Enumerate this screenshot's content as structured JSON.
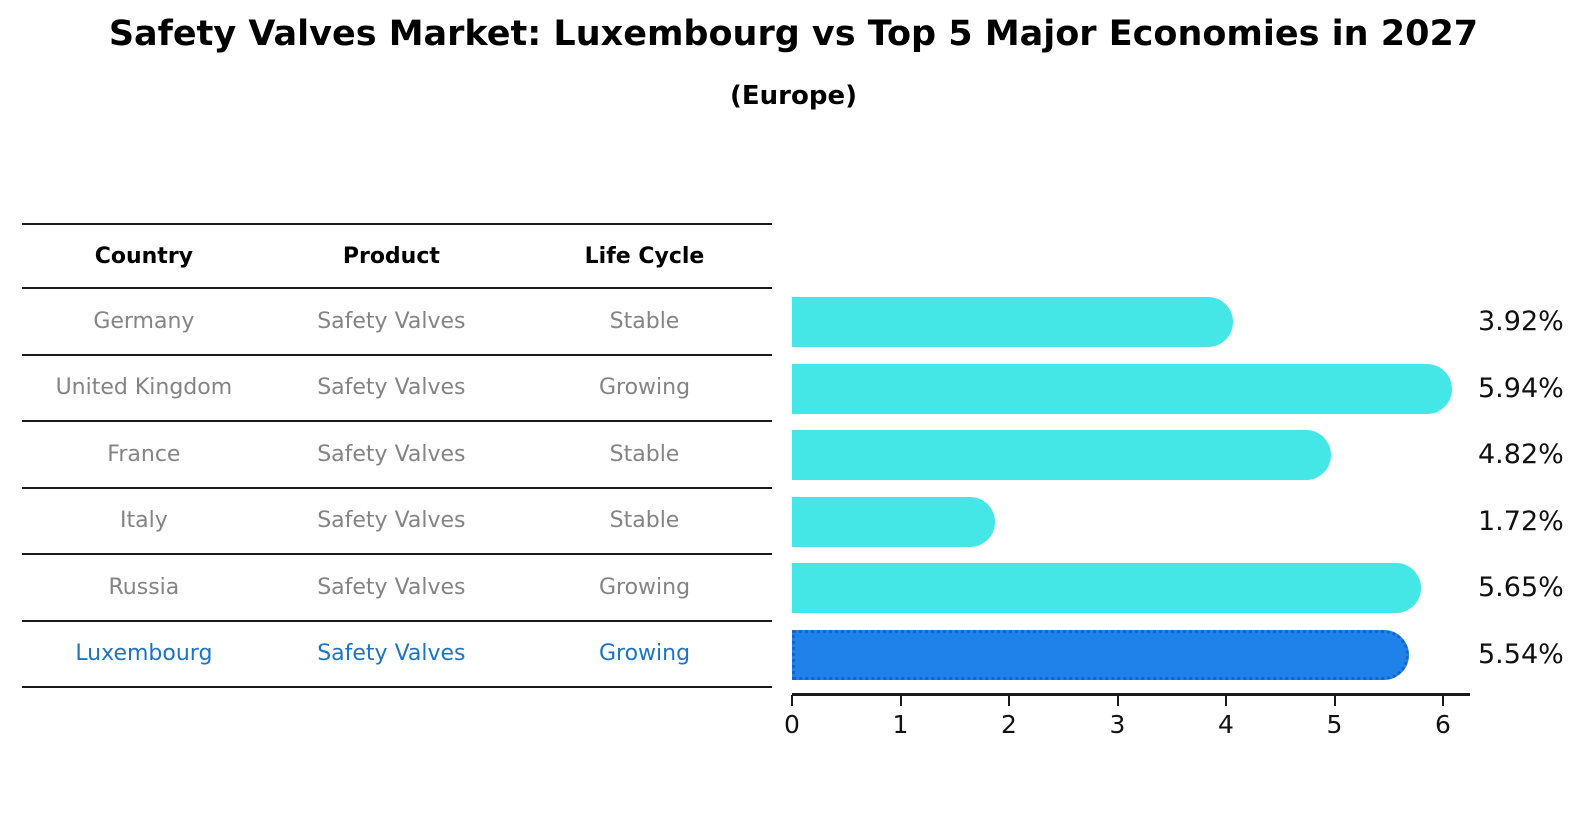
{
  "table": {
    "headers": [
      "Country",
      "Product",
      "Life Cycle"
    ],
    "rows": [
      {
        "country": "Germany",
        "product": "Safety Valves",
        "life_cycle": "Stable",
        "highlight": false
      },
      {
        "country": "United Kingdom",
        "product": "Safety Valves",
        "life_cycle": "Growing",
        "highlight": false
      },
      {
        "country": "France",
        "product": "Safety Valves",
        "life_cycle": "Stable",
        "highlight": false
      },
      {
        "country": "Italy",
        "product": "Safety Valves",
        "life_cycle": "Stable",
        "highlight": false
      },
      {
        "country": "Russia",
        "product": "Safety Valves",
        "life_cycle": "Growing",
        "highlight": false
      },
      {
        "country": "Luxembourg",
        "product": "Safety Valves",
        "life_cycle": "Growing",
        "highlight": true
      }
    ]
  },
  "chart_data": {
    "type": "bar",
    "orientation": "horizontal",
    "title": "Safety Valves Market: Luxembourg vs Top 5 Major Economies in 2027",
    "subtitle": "(Europe)",
    "categories": [
      "Germany",
      "United Kingdom",
      "France",
      "Italy",
      "Russia",
      "Luxembourg"
    ],
    "values": [
      3.92,
      5.94,
      4.82,
      1.72,
      5.65,
      5.54
    ],
    "value_labels": [
      "3.92%",
      "5.94%",
      "4.82%",
      "1.72%",
      "5.65%",
      "5.54%"
    ],
    "x_ticks": [
      0,
      1,
      2,
      3,
      4,
      5,
      6
    ],
    "xlim": [
      0,
      6.25
    ],
    "grid": false,
    "legend": "none",
    "highlight_index": 5,
    "bar_color": "#45e6e6",
    "highlight_bar_color": "#1e82ea",
    "highlight_border_color": "#1565c8",
    "highlight_text_color": "#1b74c8",
    "axis_color": "#1a1a1a",
    "text_color": "#111111",
    "muted_text_color": "#848484"
  }
}
